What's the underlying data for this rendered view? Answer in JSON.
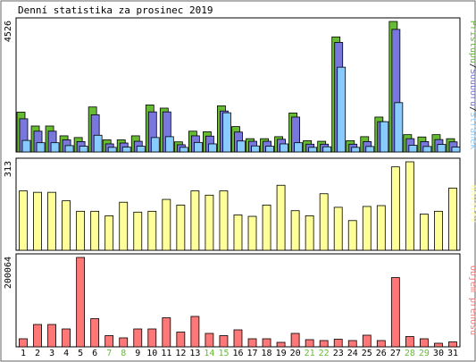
{
  "title": "Denní statistika za prosinec 2019",
  "chart_data": [
    {
      "type": "bar",
      "panel": "top",
      "ymax_label": "4526",
      "ylim": [
        0,
        4526
      ],
      "legend": [
        {
          "label": "Přístupů",
          "color": "#66bb33"
        },
        {
          "label": "Souborů",
          "color": "#7777dd"
        },
        {
          "label": "Stránek",
          "color": "#88ccff"
        }
      ],
      "categories": [
        "1",
        "2",
        "3",
        "4",
        "5",
        "6",
        "7",
        "8",
        "9",
        "10",
        "11",
        "12",
        "13",
        "14",
        "15",
        "16",
        "17",
        "18",
        "19",
        "20",
        "21",
        "22",
        "23",
        "24",
        "25",
        "26",
        "27",
        "28",
        "29",
        "30",
        "31"
      ],
      "series": [
        {
          "name": "Přístupů",
          "values": [
            1380,
            900,
            900,
            560,
            500,
            1560,
            420,
            420,
            560,
            1630,
            1520,
            350,
            720,
            700,
            1600,
            880,
            460,
            460,
            530,
            1350,
            390,
            370,
            3990,
            390,
            530,
            1210,
            4526,
            600,
            520,
            600,
            460
          ]
        },
        {
          "name": "Souborů",
          "values": [
            1150,
            720,
            720,
            420,
            360,
            1290,
            280,
            310,
            370,
            1390,
            1390,
            250,
            560,
            550,
            1420,
            690,
            370,
            370,
            440,
            1210,
            270,
            270,
            3800,
            270,
            360,
            1050,
            4250,
            460,
            360,
            430,
            350
          ]
        },
        {
          "name": "Stránek",
          "values": [
            400,
            320,
            320,
            220,
            200,
            580,
            160,
            170,
            200,
            500,
            530,
            160,
            330,
            280,
            1360,
            380,
            210,
            200,
            280,
            320,
            160,
            180,
            2940,
            160,
            190,
            1050,
            1710,
            230,
            190,
            260,
            170
          ]
        }
      ]
    },
    {
      "type": "bar",
      "panel": "middle",
      "ymax_label": "313",
      "ylim": [
        0,
        313
      ],
      "legend": [
        {
          "label": "Návštěv",
          "color": "#ffff99"
        }
      ],
      "categories": [
        "1",
        "2",
        "3",
        "4",
        "5",
        "6",
        "7",
        "8",
        "9",
        "10",
        "11",
        "12",
        "13",
        "14",
        "15",
        "16",
        "17",
        "18",
        "19",
        "20",
        "21",
        "22",
        "23",
        "24",
        "25",
        "26",
        "27",
        "28",
        "29",
        "30",
        "31"
      ],
      "series": [
        {
          "name": "Návštěv",
          "values": [
            210,
            205,
            205,
            175,
            138,
            138,
            122,
            170,
            135,
            138,
            180,
            160,
            210,
            195,
            210,
            125,
            120,
            160,
            230,
            140,
            122,
            200,
            152,
            105,
            155,
            158,
            295,
            313,
            128,
            138,
            220
          ]
        }
      ]
    },
    {
      "type": "bar",
      "panel": "bottom",
      "ymax_label": "200064",
      "ylim": [
        0,
        200064
      ],
      "legend": [
        {
          "label": "Objem přenosu",
          "color": "#ff7777"
        }
      ],
      "categories": [
        "1",
        "2",
        "3",
        "4",
        "5",
        "6",
        "7",
        "8",
        "9",
        "10",
        "11",
        "12",
        "13",
        "14",
        "15",
        "16",
        "17",
        "18",
        "19",
        "20",
        "21",
        "22",
        "23",
        "24",
        "25",
        "26",
        "27",
        "28",
        "29",
        "30",
        "31"
      ],
      "series": [
        {
          "name": "Objem přenosu",
          "values": [
            18000,
            50000,
            50000,
            40000,
            200064,
            63000,
            25000,
            20000,
            40000,
            40000,
            65000,
            33000,
            68000,
            30000,
            25000,
            38000,
            18000,
            18000,
            10000,
            30000,
            16000,
            14000,
            17000,
            14000,
            26000,
            14000,
            155000,
            23000,
            18000,
            8000,
            11000
          ]
        }
      ]
    }
  ],
  "day_labels": [
    {
      "label": "1",
      "weekend": false
    },
    {
      "label": "2",
      "weekend": false
    },
    {
      "label": "3",
      "weekend": false
    },
    {
      "label": "4",
      "weekend": false
    },
    {
      "label": "5",
      "weekend": false
    },
    {
      "label": "6",
      "weekend": false
    },
    {
      "label": "7",
      "weekend": true
    },
    {
      "label": "8",
      "weekend": true
    },
    {
      "label": "9",
      "weekend": false
    },
    {
      "label": "10",
      "weekend": false
    },
    {
      "label": "11",
      "weekend": false
    },
    {
      "label": "12",
      "weekend": false
    },
    {
      "label": "13",
      "weekend": false
    },
    {
      "label": "14",
      "weekend": true
    },
    {
      "label": "15",
      "weekend": true
    },
    {
      "label": "16",
      "weekend": false
    },
    {
      "label": "17",
      "weekend": false
    },
    {
      "label": "18",
      "weekend": false
    },
    {
      "label": "19",
      "weekend": false
    },
    {
      "label": "20",
      "weekend": false
    },
    {
      "label": "21",
      "weekend": true
    },
    {
      "label": "22",
      "weekend": true
    },
    {
      "label": "23",
      "weekend": false
    },
    {
      "label": "24",
      "weekend": false
    },
    {
      "label": "25",
      "weekend": false
    },
    {
      "label": "26",
      "weekend": false
    },
    {
      "label": "27",
      "weekend": false
    },
    {
      "label": "28",
      "weekend": true
    },
    {
      "label": "29",
      "weekend": true
    },
    {
      "label": "30",
      "weekend": false
    },
    {
      "label": "31",
      "weekend": false
    }
  ],
  "colors": {
    "weekday_label": "#000000",
    "weekend_label": "#66bb33",
    "legend_separator": "#000000"
  }
}
